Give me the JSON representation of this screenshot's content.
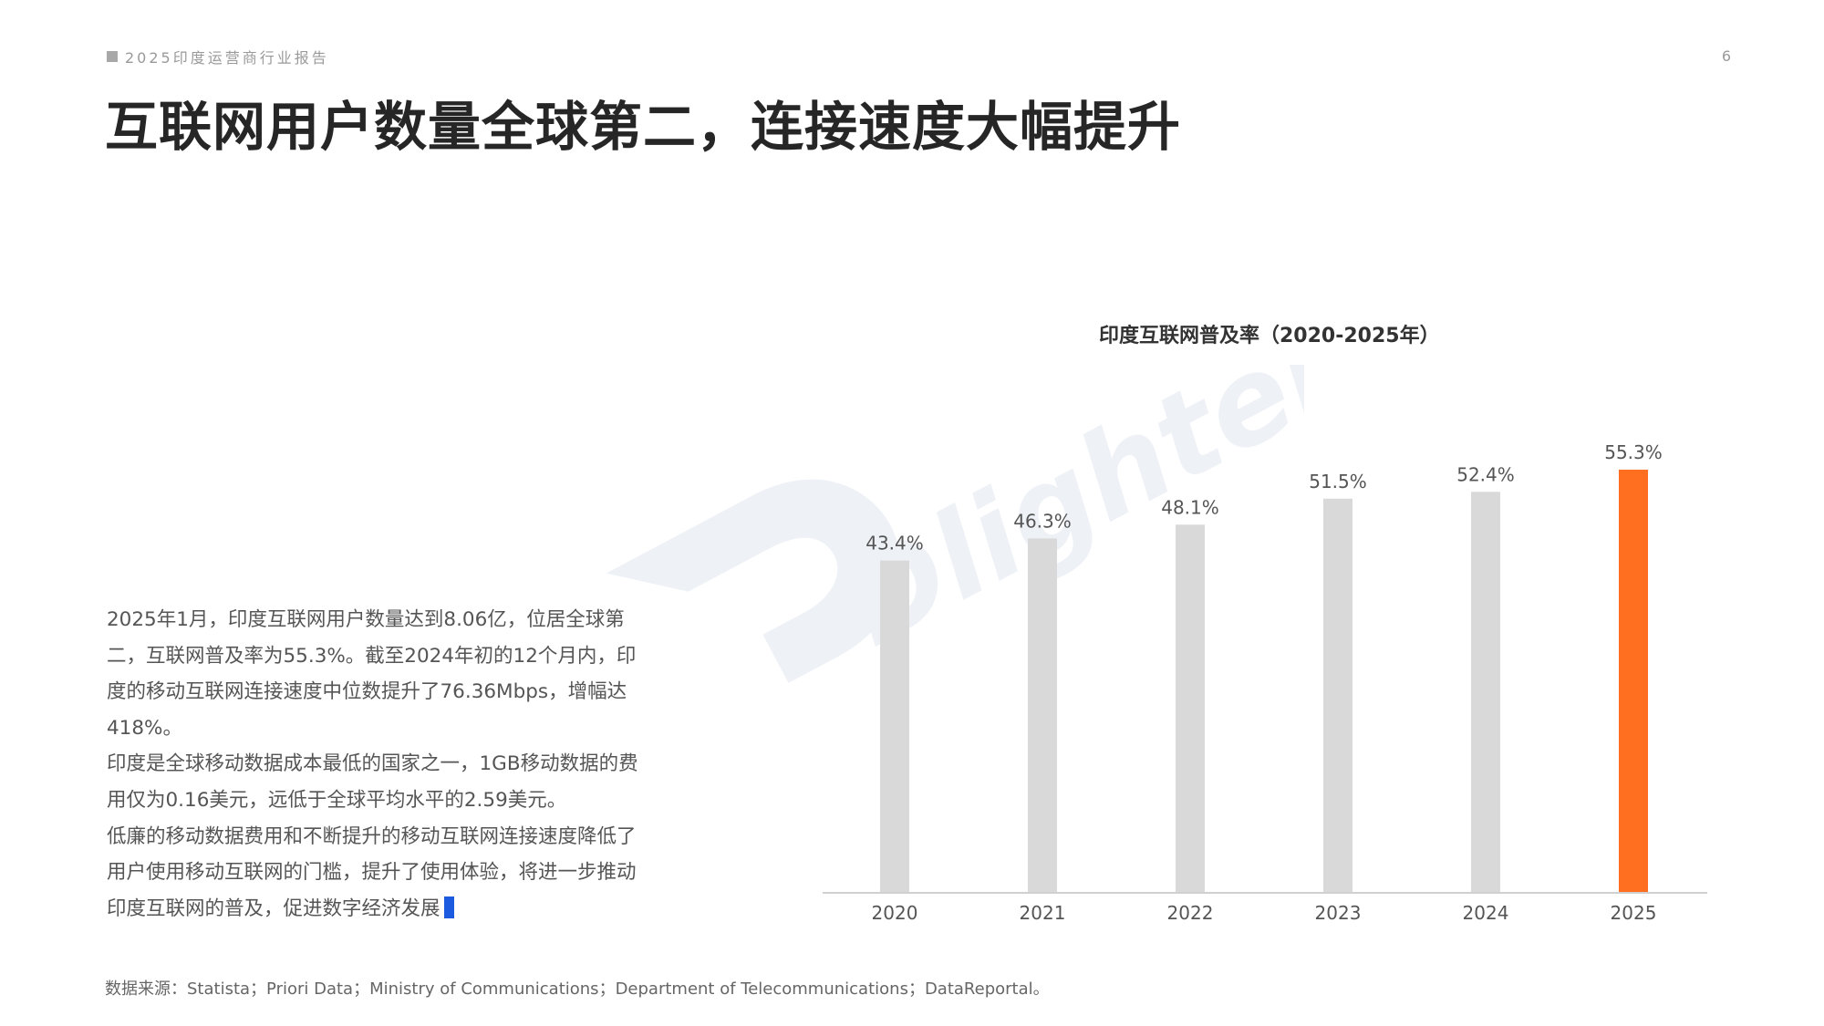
{
  "header": {
    "report_tag": "2025印度运营商行业报告",
    "page_number": "6",
    "title": "互联网用户数量全球第二，连接速度大幅提升"
  },
  "body": {
    "paragraphs": [
      "2025年1月，印度互联网用户数量达到8.06亿，位居全球第二，互联网普及率为55.3%。截至2024年初的12个月内，印度的移动互联网连接速度中位数提升了76.36Mbps，增幅达418%。",
      "印度是全球移动数据成本最低的国家之一，1GB移动数据的费用仅为0.16美元，远低于全球平均水平的2.59美元。",
      "低廉的移动数据费用和不断提升的移动互联网连接速度降低了用户使用移动互联网的门槛，提升了使用体验，将进一步推动印度互联网的普及，促进数字经济发展"
    ]
  },
  "source": "数据来源：Statista；Priori Data；Ministry of Communications；Department of Telecommunications；DataReportal。",
  "watermark": {
    "text": "Dlightek",
    "color": "#eef1f6"
  },
  "colors": {
    "bar_default": "#d9d9d9",
    "bar_highlight": "#ff6f1f",
    "axis": "#d0d0d0",
    "label": "#555555",
    "cursor": "#1c5be0"
  },
  "chart_data": {
    "type": "bar",
    "title": "印度互联网普及率（2020-2025年）",
    "categories": [
      "2020",
      "2021",
      "2022",
      "2023",
      "2024",
      "2025"
    ],
    "values": [
      43.4,
      46.3,
      48.1,
      51.5,
      52.4,
      55.3
    ],
    "data_labels": [
      "43.4%",
      "46.3%",
      "48.1%",
      "51.5%",
      "52.4%",
      "55.3%"
    ],
    "highlight_index": 5,
    "ylim": [
      0,
      55.3
    ],
    "xlabel": "",
    "ylabel": "",
    "grid": false,
    "legend": "none"
  }
}
